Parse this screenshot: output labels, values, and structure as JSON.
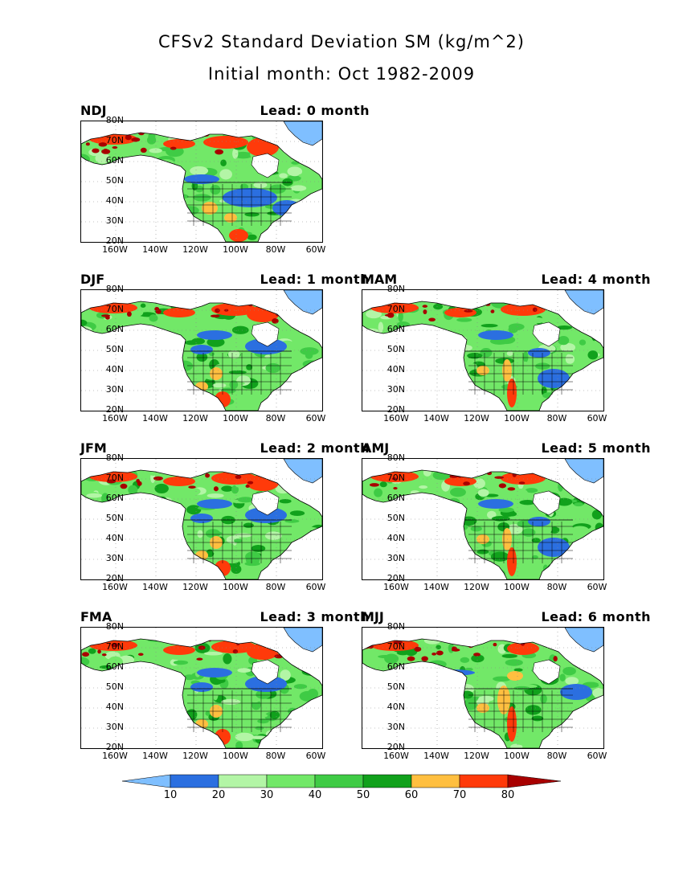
{
  "header": {
    "title": "CFSv2 Standard Deviation SM (kg/m^2)",
    "subtitle": "Initial month: Oct 1982-2009"
  },
  "axes": {
    "lat_labels": [
      "80N",
      "70N",
      "60N",
      "50N",
      "40N",
      "30N",
      "20N"
    ],
    "lon_labels": [
      "160W",
      "140W",
      "120W",
      "100W",
      "80W",
      "60W"
    ]
  },
  "panels": [
    {
      "season": "NDJ",
      "lead": "Lead: 0 month",
      "style": "a"
    },
    {
      "season": "DJF",
      "lead": "Lead: 1 month",
      "style": "b"
    },
    {
      "season": "MAM",
      "lead": "Lead: 4 month",
      "style": "c"
    },
    {
      "season": "JFM",
      "lead": "Lead: 2 month",
      "style": "b"
    },
    {
      "season": "AMJ",
      "lead": "Lead: 5 month",
      "style": "c"
    },
    {
      "season": "FMA",
      "lead": "Lead: 3 month",
      "style": "b"
    },
    {
      "season": "MJJ",
      "lead": "Lead: 6 month",
      "style": "d"
    }
  ],
  "colorbar": {
    "labels": [
      "10",
      "20",
      "30",
      "40",
      "50",
      "60",
      "70",
      "80"
    ],
    "colors": [
      "#7fbfff",
      "#2b6fe0",
      "#b3f5a6",
      "#72e868",
      "#3fcb45",
      "#11a11c",
      "#ffbf40",
      "#ff3a0a",
      "#a80000"
    ]
  }
}
